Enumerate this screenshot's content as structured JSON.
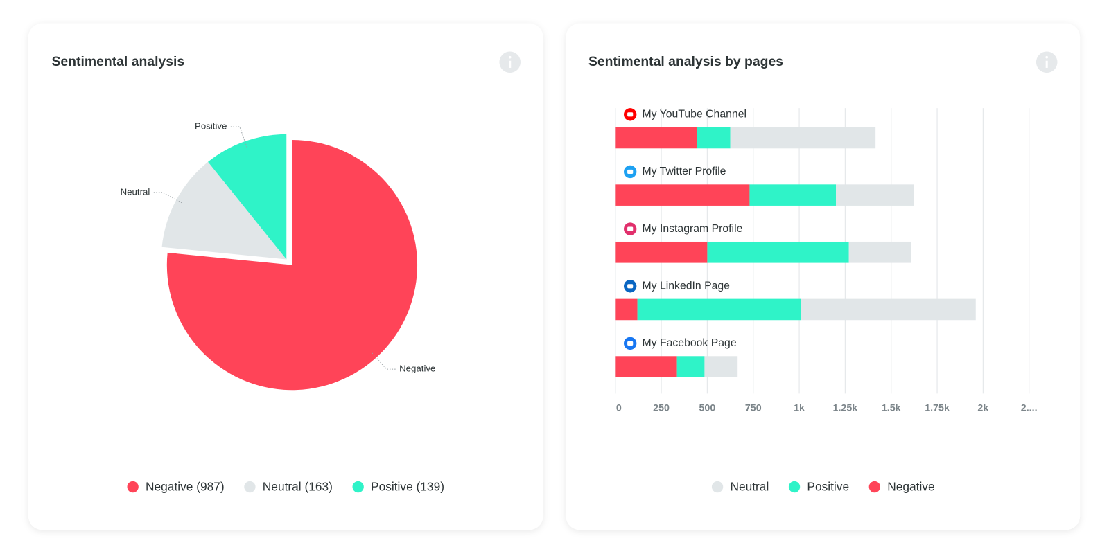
{
  "chart_data": [
    {
      "type": "pie",
      "title": "Sentimental analysis",
      "categories": [
        "Negative",
        "Neutral",
        "Positive"
      ],
      "values": [
        987,
        163,
        139
      ],
      "colors": [
        "#ff4458",
        "#e1e6e8",
        "#2ff3c8"
      ],
      "legend_labels": [
        "Negative (987)",
        "Neutral (163)",
        "Positive (139)"
      ]
    },
    {
      "type": "bar",
      "orientation": "horizontal",
      "stacked": true,
      "title": "Sentimental analysis by pages",
      "categories": [
        "My YouTube Channel",
        "My Twitter Profile",
        "My Instagram Profile",
        "My LinkedIn Page",
        "My Facebook Page"
      ],
      "series": [
        {
          "name": "Negative",
          "color": "#ff4458",
          "values": [
            445,
            730,
            500,
            120,
            335
          ]
        },
        {
          "name": "Positive",
          "color": "#2ff3c8",
          "values": [
            180,
            470,
            770,
            890,
            150
          ]
        },
        {
          "name": "Neutral",
          "color": "#e1e6e8",
          "values": [
            790,
            425,
            340,
            950,
            180
          ]
        }
      ],
      "xlim": [
        0,
        2250
      ],
      "xticks": [
        0,
        250,
        500,
        750,
        {
          "value": 1000,
          "label": "1k"
        },
        {
          "value": 1250,
          "label": "1.25k"
        },
        {
          "value": 1500,
          "label": "1.5k"
        },
        {
          "value": 1750,
          "label": "1.75k"
        },
        {
          "value": 2000,
          "label": "2k"
        },
        {
          "value": 2250,
          "label": "2...."
        }
      ],
      "grid": true
    }
  ]
}
